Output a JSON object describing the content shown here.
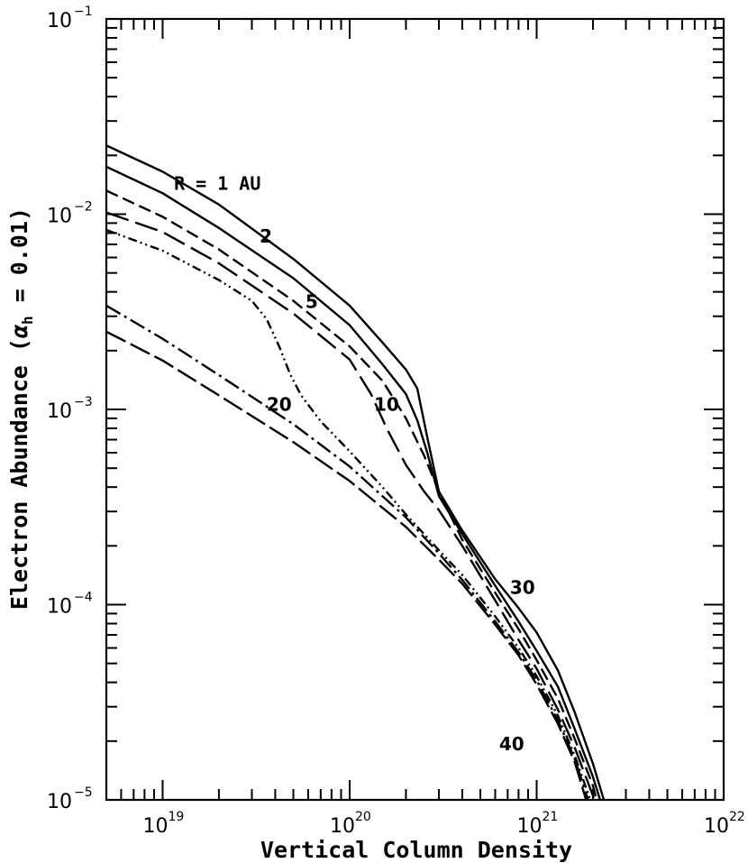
{
  "chart_data": {
    "type": "line",
    "xlabel": "Vertical Column Density",
    "ylabel_main": "Electron Abundance (",
    "ylabel_alpha": "α",
    "ylabel_sub": "h",
    "ylabel_end": " = 0.01)",
    "x_scale": "log",
    "y_scale": "log",
    "xlim": [
      5e+18,
      1e+22
    ],
    "ylim": [
      1e-05,
      0.1
    ],
    "x_ticks": [
      {
        "value": 1e+19,
        "base": "10",
        "exp": "19"
      },
      {
        "value": 1e+20,
        "base": "10",
        "exp": "20"
      },
      {
        "value": 1e+21,
        "base": "10",
        "exp": "21"
      },
      {
        "value": 1e+22,
        "base": "10",
        "exp": "22"
      }
    ],
    "y_ticks": [
      {
        "value": 1e-05,
        "base": "10",
        "exp": "−5"
      },
      {
        "value": 0.0001,
        "base": "10",
        "exp": "−4"
      },
      {
        "value": 0.001,
        "base": "10",
        "exp": "−3"
      },
      {
        "value": 0.01,
        "base": "10",
        "exp": "−2"
      },
      {
        "value": 0.1,
        "base": "10",
        "exp": "−1"
      }
    ],
    "grid": false,
    "series": [
      {
        "name": "R = 1 AU",
        "dash": "",
        "points": [
          [
            5e+18,
            0.0225
          ],
          [
            1e+19,
            0.0165
          ],
          [
            2e+19,
            0.0112
          ],
          [
            5e+19,
            0.0059
          ],
          [
            1e+20,
            0.0034
          ],
          [
            1.5e+20,
            0.0022
          ],
          [
            2e+20,
            0.0016
          ],
          [
            2.3e+20,
            0.00128
          ],
          [
            2.6e+20,
            0.00072
          ],
          [
            3e+20,
            0.00038
          ],
          [
            4e+20,
            0.00024
          ],
          [
            6e+20,
            0.000135
          ],
          [
            8e+20,
            9.6e-05
          ],
          [
            1e+21,
            7.2e-05
          ],
          [
            1.3e+21,
            4.6e-05
          ],
          [
            1.6e+21,
            2.8e-05
          ],
          [
            2e+21,
            1.53e-05
          ],
          [
            2.3e+21,
            9.8e-06
          ]
        ]
      },
      {
        "name": "2",
        "dash": "",
        "points": [
          [
            5e+18,
            0.0175
          ],
          [
            1e+19,
            0.0128
          ],
          [
            2e+19,
            0.0085
          ],
          [
            5e+19,
            0.0047
          ],
          [
            1e+20,
            0.0027
          ],
          [
            1.5e+20,
            0.0017
          ],
          [
            2e+20,
            0.0012
          ],
          [
            2.3e+20,
            0.00088
          ],
          [
            2.6e+20,
            0.0006
          ],
          [
            3e+20,
            0.00036
          ],
          [
            4e+20,
            0.00023
          ],
          [
            6e+20,
            0.000125
          ],
          [
            8e+20,
            8.2e-05
          ],
          [
            1e+21,
            5.8e-05
          ],
          [
            1.3e+21,
            3.8e-05
          ],
          [
            1.6e+21,
            2.3e-05
          ],
          [
            2e+21,
            1.31e-05
          ],
          [
            2.2e+21,
            9.8e-06
          ]
        ]
      },
      {
        "name": "5",
        "dash": "14 6",
        "points": [
          [
            5e+18,
            0.0132
          ],
          [
            1e+19,
            0.0097
          ],
          [
            2e+19,
            0.0066
          ],
          [
            5e+19,
            0.0036
          ],
          [
            1e+20,
            0.0021
          ],
          [
            1.5e+20,
            0.0014
          ],
          [
            2e+20,
            0.0009
          ],
          [
            2.5e+20,
            0.00058
          ],
          [
            3e+20,
            0.00038
          ],
          [
            4e+20,
            0.000215
          ],
          [
            6e+20,
            0.000115
          ],
          [
            8e+20,
            7.5e-05
          ],
          [
            1e+21,
            5.2e-05
          ],
          [
            1.3e+21,
            3.3e-05
          ],
          [
            1.6e+21,
            2.05e-05
          ],
          [
            2e+21,
            1.18e-05
          ],
          [
            2.1e+21,
            9.8e-06
          ]
        ]
      },
      {
        "name": "10",
        "dash": "26 8",
        "points": [
          [
            5e+18,
            0.0102
          ],
          [
            1e+19,
            0.0081
          ],
          [
            2e+19,
            0.0056
          ],
          [
            5e+19,
            0.0031
          ],
          [
            1e+20,
            0.0018
          ],
          [
            1.3e+20,
            0.0012
          ],
          [
            1.6e+20,
            0.00078
          ],
          [
            2e+20,
            0.00052
          ],
          [
            2.5e+20,
            0.00038
          ],
          [
            3e+20,
            0.000305
          ],
          [
            4e+20,
            0.0002
          ],
          [
            6e+20,
            0.000105
          ],
          [
            8e+20,
            6.6e-05
          ],
          [
            1e+21,
            4.7e-05
          ],
          [
            1.3e+21,
            2.9e-05
          ],
          [
            1.6e+21,
            1.85e-05
          ],
          [
            2e+21,
            1.05e-05
          ],
          [
            2.05e+21,
            9.8e-06
          ]
        ]
      },
      {
        "name": "20",
        "dash": "10 4 2 4 2 4",
        "points": [
          [
            5e+18,
            0.0083
          ],
          [
            1e+19,
            0.0065
          ],
          [
            2e+19,
            0.0046
          ],
          [
            3e+19,
            0.0036
          ],
          [
            3.6e+19,
            0.0029
          ],
          [
            4.2e+19,
            0.0021
          ],
          [
            4.8e+19,
            0.00152
          ],
          [
            5.5e+19,
            0.00118
          ],
          [
            7e+19,
            0.00087
          ],
          [
            1e+20,
            0.00061
          ],
          [
            1.5e+20,
            0.0004
          ],
          [
            2e+20,
            0.00029
          ],
          [
            3e+20,
            0.00019
          ],
          [
            4e+20,
            0.000142
          ],
          [
            6e+20,
            8.7e-05
          ],
          [
            8e+20,
            6e-05
          ],
          [
            1e+21,
            4.3e-05
          ],
          [
            1.3e+21,
            2.7e-05
          ],
          [
            1.6e+21,
            1.68e-05
          ],
          [
            1.95e+21,
            9.8e-06
          ]
        ]
      },
      {
        "name": "30",
        "dash": "18 5 3 5",
        "points": [
          [
            5e+18,
            0.0034
          ],
          [
            1e+19,
            0.0023
          ],
          [
            2e+19,
            0.0015
          ],
          [
            5e+19,
            0.00084
          ],
          [
            1e+20,
            0.00051
          ],
          [
            2e+20,
            0.00028
          ],
          [
            3e+20,
            0.000183
          ],
          [
            4e+20,
            0.000134
          ],
          [
            6e+20,
            8.2e-05
          ],
          [
            8e+20,
            5.7e-05
          ],
          [
            1e+21,
            4.1e-05
          ],
          [
            1.3e+21,
            2.55e-05
          ],
          [
            1.6e+21,
            1.62e-05
          ],
          [
            1.9e+21,
            9.8e-06
          ]
        ]
      },
      {
        "name": "40",
        "dash": "24 6",
        "points": [
          [
            5e+18,
            0.0025
          ],
          [
            1e+19,
            0.00178
          ],
          [
            2e+19,
            0.00118
          ],
          [
            5e+19,
            0.00068
          ],
          [
            1e+20,
            0.00043
          ],
          [
            2e+20,
            0.00025
          ],
          [
            3e+20,
            0.00017
          ],
          [
            4e+20,
            0.000128
          ],
          [
            6e+20,
            7.9e-05
          ],
          [
            8e+20,
            5.5e-05
          ],
          [
            1e+21,
            3.9e-05
          ],
          [
            1.3e+21,
            2.45e-05
          ],
          [
            1.6e+21,
            1.56e-05
          ],
          [
            1.85e+21,
            9.8e-06
          ]
        ]
      }
    ],
    "annotations": [
      {
        "text": "R = 1 AU",
        "x": 1.15e+19,
        "y": 0.0145,
        "mono": true
      },
      {
        "text": "2",
        "x": 3.3e+19,
        "y": 0.0078
      },
      {
        "text": "5",
        "x": 5.8e+19,
        "y": 0.0036
      },
      {
        "text": "10",
        "x": 1.35e+20,
        "y": 0.00107
      },
      {
        "text": "20",
        "x": 3.6e+19,
        "y": 0.00107
      },
      {
        "text": "30",
        "x": 7.2e+20,
        "y": 0.000124
      },
      {
        "text": "40",
        "x": 6.3e+20,
        "y": 1.95e-05
      }
    ]
  }
}
